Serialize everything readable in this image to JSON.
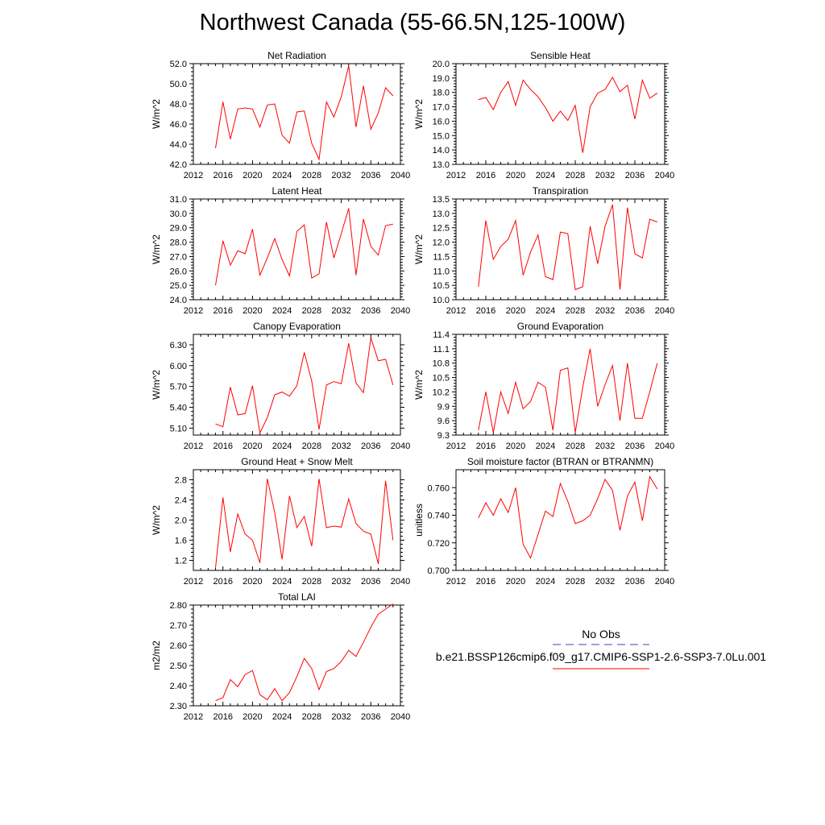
{
  "page": {
    "title": "Northwest Canada (55-66.5N,125-100W)"
  },
  "legend": {
    "obs_label": "No Obs",
    "obs_color": "#4040c0",
    "case_label": "b.e21.BSSP126cmip6.f09_g17.CMIP6-SSP1-2.6-SSP3-7.0Lu.001",
    "case_color": "#ff0000"
  },
  "chart_data": [
    {
      "type": "line",
      "title": "Net Radiation",
      "xlabel": "",
      "ylabel": "W/m^2",
      "xlim": [
        2012,
        2040
      ],
      "ylim": [
        42.0,
        52.0
      ],
      "xticks": [
        2012,
        2016,
        2020,
        2024,
        2028,
        2032,
        2036,
        2040
      ],
      "yticks": [
        42.0,
        44.0,
        46.0,
        48.0,
        50.0,
        52.0
      ],
      "ytick_decimals": 1,
      "grid": false,
      "x": [
        2015,
        2016,
        2017,
        2018,
        2019,
        2020,
        2021,
        2022,
        2023,
        2024,
        2025,
        2026,
        2027,
        2028,
        2029,
        2030,
        2031,
        2032,
        2033,
        2034,
        2035,
        2036,
        2037,
        2038,
        2039
      ],
      "series": [
        {
          "color": "#ff0000",
          "values": [
            43.6,
            48.2,
            44.5,
            47.5,
            47.6,
            47.5,
            45.7,
            47.9,
            48.0,
            44.9,
            44.1,
            47.2,
            47.3,
            44.1,
            42.5,
            48.2,
            46.7,
            48.7,
            51.8,
            45.7,
            49.8,
            45.5,
            47.1,
            49.6,
            48.8
          ]
        }
      ]
    },
    {
      "type": "line",
      "title": "Sensible Heat",
      "xlabel": "",
      "ylabel": "W/m^2",
      "xlim": [
        2012,
        2040
      ],
      "ylim": [
        13.0,
        20.0
      ],
      "xticks": [
        2012,
        2016,
        2020,
        2024,
        2028,
        2032,
        2036,
        2040
      ],
      "yticks": [
        13.0,
        14.0,
        15.0,
        16.0,
        17.0,
        18.0,
        19.0,
        20.0
      ],
      "ytick_decimals": 1,
      "grid": false,
      "x": [
        2015,
        2016,
        2017,
        2018,
        2019,
        2020,
        2021,
        2022,
        2023,
        2024,
        2025,
        2026,
        2027,
        2028,
        2029,
        2030,
        2031,
        2032,
        2033,
        2034,
        2035,
        2036,
        2037,
        2038,
        2039
      ],
      "series": [
        {
          "color": "#ff0000",
          "values": [
            17.5,
            17.65,
            16.8,
            18.0,
            18.75,
            17.1,
            18.85,
            18.2,
            17.7,
            16.95,
            16.0,
            16.7,
            16.05,
            17.1,
            13.8,
            17.0,
            17.95,
            18.2,
            19.05,
            18.05,
            18.5,
            16.15,
            18.85,
            17.6,
            17.95
          ]
        }
      ]
    },
    {
      "type": "line",
      "title": "Latent Heat",
      "xlabel": "",
      "ylabel": "W/m^2",
      "xlim": [
        2012,
        2040
      ],
      "ylim": [
        24.0,
        31.0
      ],
      "xticks": [
        2012,
        2016,
        2020,
        2024,
        2028,
        2032,
        2036,
        2040
      ],
      "yticks": [
        24.0,
        25.0,
        26.0,
        27.0,
        28.0,
        29.0,
        30.0,
        31.0
      ],
      "ytick_decimals": 1,
      "grid": false,
      "x": [
        2015,
        2016,
        2017,
        2018,
        2019,
        2020,
        2021,
        2022,
        2023,
        2024,
        2025,
        2026,
        2027,
        2028,
        2029,
        2030,
        2031,
        2032,
        2033,
        2034,
        2035,
        2036,
        2037,
        2038,
        2039
      ],
      "series": [
        {
          "color": "#ff0000",
          "values": [
            25.0,
            28.1,
            26.4,
            27.4,
            27.2,
            28.9,
            25.7,
            26.9,
            28.25,
            26.8,
            25.65,
            28.75,
            29.2,
            25.5,
            25.8,
            29.4,
            26.9,
            28.6,
            30.35,
            25.7,
            29.6,
            27.7,
            27.1,
            29.15,
            29.25
          ]
        }
      ]
    },
    {
      "type": "line",
      "title": "Transpiration",
      "xlabel": "",
      "ylabel": "W/m^2",
      "xlim": [
        2012,
        2040
      ],
      "ylim": [
        10.0,
        13.5
      ],
      "xticks": [
        2012,
        2016,
        2020,
        2024,
        2028,
        2032,
        2036,
        2040
      ],
      "yticks": [
        10.0,
        10.5,
        11.0,
        11.5,
        12.0,
        12.5,
        13.0,
        13.5
      ],
      "ytick_decimals": 1,
      "grid": false,
      "x": [
        2015,
        2016,
        2017,
        2018,
        2019,
        2020,
        2021,
        2022,
        2023,
        2024,
        2025,
        2026,
        2027,
        2028,
        2029,
        2030,
        2031,
        2032,
        2033,
        2034,
        2035,
        2036,
        2037,
        2038,
        2039
      ],
      "series": [
        {
          "color": "#ff0000",
          "values": [
            10.45,
            12.75,
            11.4,
            11.85,
            12.1,
            12.75,
            10.85,
            11.65,
            12.25,
            10.8,
            10.7,
            12.35,
            12.3,
            10.35,
            10.45,
            12.55,
            11.25,
            12.55,
            13.3,
            10.35,
            13.2,
            11.6,
            11.45,
            12.8,
            12.7
          ]
        }
      ]
    },
    {
      "type": "line",
      "title": "Canopy Evaporation",
      "xlabel": "",
      "ylabel": "W/m^2",
      "xlim": [
        2012,
        2040
      ],
      "ylim": [
        5.0,
        6.45
      ],
      "xticks": [
        2012,
        2016,
        2020,
        2024,
        2028,
        2032,
        2036,
        2040
      ],
      "yticks": [
        5.1,
        5.4,
        5.7,
        6.0,
        6.3
      ],
      "ytick_decimals": 2,
      "grid": false,
      "x": [
        2015,
        2016,
        2017,
        2018,
        2019,
        2020,
        2021,
        2022,
        2023,
        2024,
        2025,
        2026,
        2027,
        2028,
        2029,
        2030,
        2031,
        2032,
        2033,
        2034,
        2035,
        2036,
        2037,
        2038,
        2039
      ],
      "series": [
        {
          "color": "#ff0000",
          "values": [
            5.16,
            5.12,
            5.69,
            5.29,
            5.31,
            5.71,
            5.03,
            5.25,
            5.58,
            5.62,
            5.56,
            5.71,
            6.19,
            5.78,
            5.08,
            5.72,
            5.77,
            5.74,
            6.32,
            5.75,
            5.61,
            6.4,
            6.07,
            6.09,
            5.72
          ]
        }
      ]
    },
    {
      "type": "line",
      "title": "Ground Evaporation",
      "xlabel": "",
      "ylabel": "W/m^2",
      "xlim": [
        2012,
        2040
      ],
      "ylim": [
        9.3,
        11.4
      ],
      "xticks": [
        2012,
        2016,
        2020,
        2024,
        2028,
        2032,
        2036,
        2040
      ],
      "yticks": [
        9.3,
        9.6,
        9.9,
        10.2,
        10.5,
        10.8,
        11.1,
        11.4
      ],
      "ytick_decimals": 1,
      "grid": false,
      "x": [
        2015,
        2016,
        2017,
        2018,
        2019,
        2020,
        2021,
        2022,
        2023,
        2024,
        2025,
        2026,
        2027,
        2028,
        2029,
        2030,
        2031,
        2032,
        2033,
        2034,
        2035,
        2036,
        2037,
        2038,
        2039
      ],
      "series": [
        {
          "color": "#ff0000",
          "values": [
            9.4,
            10.2,
            9.35,
            10.2,
            9.75,
            10.4,
            9.85,
            10.0,
            10.4,
            10.3,
            9.4,
            10.65,
            10.7,
            9.35,
            10.3,
            11.1,
            9.9,
            10.35,
            10.75,
            9.6,
            10.8,
            9.65,
            9.65,
            10.2,
            10.8
          ]
        }
      ]
    },
    {
      "type": "line",
      "title": "Ground Heat + Snow Melt",
      "xlabel": "",
      "ylabel": "W/m^2",
      "xlim": [
        2012,
        2040
      ],
      "ylim": [
        1.0,
        3.0
      ],
      "xticks": [
        2012,
        2016,
        2020,
        2024,
        2028,
        2032,
        2036,
        2040
      ],
      "yticks": [
        1.2,
        1.6,
        2.0,
        2.4,
        2.8
      ],
      "ytick_decimals": 1,
      "grid": false,
      "x": [
        2015,
        2016,
        2017,
        2018,
        2019,
        2020,
        2021,
        2022,
        2023,
        2024,
        2025,
        2026,
        2027,
        2028,
        2029,
        2030,
        2031,
        2032,
        2033,
        2034,
        2035,
        2036,
        2037,
        2038,
        2039
      ],
      "series": [
        {
          "color": "#ff0000",
          "values": [
            1.05,
            2.45,
            1.37,
            2.12,
            1.72,
            1.6,
            1.15,
            2.82,
            2.15,
            1.22,
            2.48,
            1.85,
            2.07,
            1.48,
            2.82,
            1.85,
            1.88,
            1.86,
            2.42,
            1.93,
            1.78,
            1.72,
            1.13,
            2.78,
            1.6
          ]
        }
      ]
    },
    {
      "type": "line",
      "title": "Soil moisture factor (BTRAN or BTRANMN)",
      "xlabel": "",
      "ylabel": "unitless",
      "xlim": [
        2012,
        2040
      ],
      "ylim": [
        0.7,
        0.773
      ],
      "xticks": [
        2012,
        2016,
        2020,
        2024,
        2028,
        2032,
        2036,
        2040
      ],
      "yticks": [
        0.7,
        0.72,
        0.74,
        0.76
      ],
      "ytick_decimals": 3,
      "grid": false,
      "x": [
        2015,
        2016,
        2017,
        2018,
        2019,
        2020,
        2021,
        2022,
        2023,
        2024,
        2025,
        2026,
        2027,
        2028,
        2029,
        2030,
        2031,
        2032,
        2033,
        2034,
        2035,
        2036,
        2037,
        2038,
        2039
      ],
      "series": [
        {
          "color": "#ff0000",
          "values": [
            0.738,
            0.749,
            0.74,
            0.752,
            0.742,
            0.76,
            0.719,
            0.709,
            0.726,
            0.743,
            0.739,
            0.763,
            0.75,
            0.734,
            0.736,
            0.74,
            0.752,
            0.766,
            0.758,
            0.729,
            0.754,
            0.764,
            0.736,
            0.768,
            0.759
          ]
        }
      ]
    },
    {
      "type": "line",
      "title": "Total LAI",
      "xlabel": "",
      "ylabel": "m2/m2",
      "xlim": [
        2012,
        2040
      ],
      "ylim": [
        2.3,
        2.8
      ],
      "xticks": [
        2012,
        2016,
        2020,
        2024,
        2028,
        2032,
        2036,
        2040
      ],
      "yticks": [
        2.3,
        2.4,
        2.5,
        2.6,
        2.7,
        2.8
      ],
      "ytick_decimals": 2,
      "grid": false,
      "x": [
        2015,
        2016,
        2017,
        2018,
        2019,
        2020,
        2021,
        2022,
        2023,
        2024,
        2025,
        2026,
        2027,
        2028,
        2029,
        2030,
        2031,
        2032,
        2033,
        2034,
        2035,
        2036,
        2037,
        2038,
        2039
      ],
      "series": [
        {
          "color": "#ff0000",
          "values": [
            2.325,
            2.34,
            2.43,
            2.395,
            2.455,
            2.475,
            2.355,
            2.33,
            2.385,
            2.325,
            2.365,
            2.445,
            2.535,
            2.485,
            2.38,
            2.47,
            2.485,
            2.52,
            2.575,
            2.545,
            2.615,
            2.69,
            2.755,
            2.78,
            2.805
          ]
        }
      ]
    }
  ]
}
